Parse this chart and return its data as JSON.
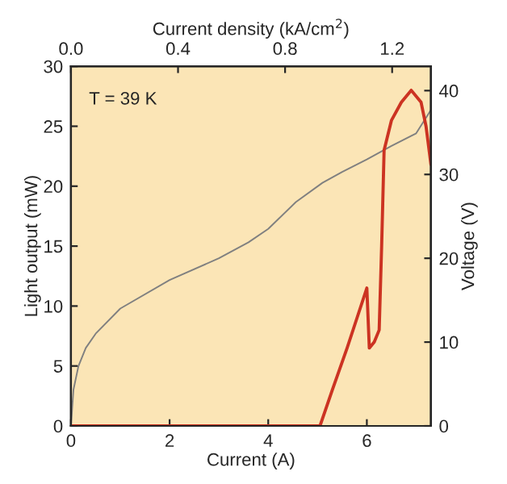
{
  "chart_data": {
    "type": "line",
    "xlabel": "Current (A)",
    "ylabel": "Light output (mW)",
    "y2label": "Voltage (V)",
    "x2label": "Current density (kA/cm$^{2}$)",
    "annotations": [
      "T = 39 K"
    ],
    "xlim": [
      0,
      7.3
    ],
    "xticks": [
      0,
      2,
      4,
      6
    ],
    "x2lim": [
      0,
      1.345
    ],
    "x2ticks": [
      {
        "value": 0,
        "label": "0.0"
      },
      0.4,
      0.8,
      1.2
    ],
    "ylim": [
      0,
      30
    ],
    "yticks": [
      0,
      5,
      10,
      15,
      20,
      25,
      30
    ],
    "y2lim": [
      0,
      42.9
    ],
    "y2ticks": [
      0,
      10,
      20,
      30,
      40
    ],
    "grid": false,
    "legend": false,
    "series": [
      {
        "color": "#808080",
        "axis": "y2",
        "x": [
          0,
          0.05,
          0.15,
          0.3,
          0.5,
          1,
          2,
          3,
          3.6,
          4.0,
          4.56,
          5.1,
          5.5,
          6.0,
          6.5,
          7.0,
          7.3
        ],
        "values": [
          0,
          4.3,
          7.1,
          9.3,
          11.0,
          14.0,
          17.4,
          20.0,
          21.9,
          23.5,
          26.7,
          29.0,
          30.3,
          31.8,
          33.4,
          34.9,
          37.7
        ]
      },
      {
        "color": "#cc3322",
        "x": [
          0,
          5.05,
          5.3,
          5.6,
          5.8,
          6.0,
          6.05,
          6.15,
          6.25,
          6.3,
          6.35,
          6.5,
          6.7,
          6.9,
          7.1,
          7.2,
          7.3
        ],
        "values": [
          0,
          0,
          3,
          6.5,
          9,
          11.5,
          6.5,
          7,
          8,
          15,
          23,
          25.5,
          27,
          28,
          27,
          25,
          21.8
        ]
      }
    ]
  }
}
